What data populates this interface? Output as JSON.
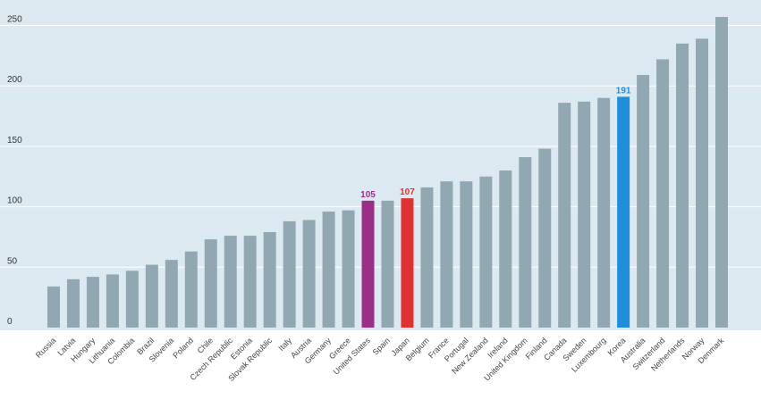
{
  "chart_data": {
    "type": "bar",
    "title": "",
    "xlabel": "",
    "ylabel": "",
    "ylim": [
      0,
      265
    ],
    "yticks": [
      0,
      50,
      100,
      150,
      200,
      250
    ],
    "grid": true,
    "categories": [
      "Russia",
      "Latvia",
      "Hungary",
      "Lithuania",
      "Colombia",
      "Brazil",
      "Slovenia",
      "Poland",
      "Chile",
      "Czech Republic",
      "Estonia",
      "Slovak Republic",
      "Italy",
      "Austria",
      "Germany",
      "Greece",
      "United States",
      "Spain",
      "Japan",
      "Belgium",
      "France",
      "Portugal",
      "New Zealand",
      "Ireland",
      "United Kingdom",
      "Finland",
      "Canada",
      "Sweden",
      "Luxembourg",
      "Korea",
      "Australia",
      "Switzerland",
      "Netherlands",
      "Norway",
      "Denmark"
    ],
    "values": [
      34,
      40,
      42,
      44,
      47,
      52,
      56,
      63,
      73,
      76,
      76,
      79,
      88,
      89,
      96,
      97,
      105,
      105,
      107,
      116,
      121,
      121,
      125,
      130,
      141,
      148,
      186,
      187,
      190,
      191,
      209,
      222,
      235,
      239,
      257
    ],
    "highlights": [
      {
        "category": "United States",
        "label": "105",
        "color": "#9b2f87"
      },
      {
        "category": "Japan",
        "label": "107",
        "color": "#e03232"
      },
      {
        "category": "Korea",
        "label": "191",
        "color": "#1f8fd9"
      }
    ],
    "default_color": "#91a7b1"
  },
  "colors": {
    "plot_background": "#dde9f1",
    "grid": "#ffffff"
  }
}
